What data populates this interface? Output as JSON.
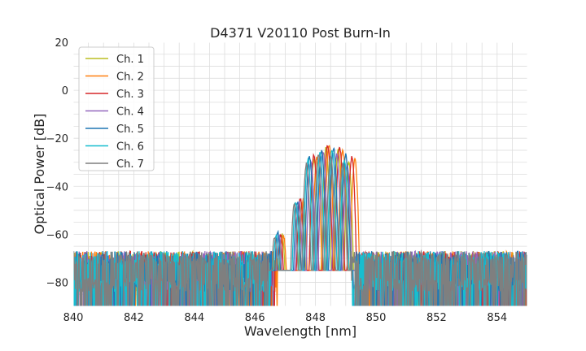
{
  "chart_data": {
    "type": "line",
    "title": "D4371 V20110 Post Burn-In",
    "xlabel": "Wavelength [nm]",
    "ylabel": "Optical Power [dB]",
    "xlim": [
      840,
      855
    ],
    "ylim": [
      -90,
      20
    ],
    "xticks": [
      840,
      842,
      844,
      846,
      848,
      850,
      852,
      854
    ],
    "yticks": [
      20,
      0,
      -20,
      -40,
      -60,
      -80
    ],
    "grid": true,
    "legend_position": "top-left",
    "noise_floor_db": -75,
    "series": [
      {
        "name": "Ch. 1",
        "color": "#bcbd22",
        "peaks": [
          [
            846.9,
            -60
          ],
          [
            847.55,
            -47
          ],
          [
            847.95,
            -29
          ],
          [
            848.35,
            -24
          ],
          [
            848.75,
            -25
          ],
          [
            849.1,
            -30
          ]
        ],
        "band": [
          846.7,
          849.35
        ]
      },
      {
        "name": "Ch. 2",
        "color": "#ff7f0e",
        "peaks": [
          [
            846.95,
            -61
          ],
          [
            847.6,
            -46
          ],
          [
            848.05,
            -28
          ],
          [
            848.45,
            -23
          ],
          [
            848.9,
            -25
          ],
          [
            849.3,
            -29
          ]
        ],
        "band": [
          846.75,
          849.55
        ]
      },
      {
        "name": "Ch. 3",
        "color": "#d62728",
        "peaks": [
          [
            846.85,
            -60
          ],
          [
            847.5,
            -45
          ],
          [
            847.95,
            -27
          ],
          [
            848.4,
            -23
          ],
          [
            848.8,
            -24
          ],
          [
            849.2,
            -28
          ]
        ],
        "band": [
          846.65,
          849.45
        ]
      },
      {
        "name": "Ch. 4",
        "color": "#9467bd",
        "peaks": [
          [
            846.8,
            -60
          ],
          [
            847.45,
            -46
          ],
          [
            847.85,
            -30
          ],
          [
            848.25,
            -26
          ],
          [
            848.7,
            -27
          ],
          [
            849.05,
            -31
          ]
        ],
        "band": [
          846.6,
          849.3
        ]
      },
      {
        "name": "Ch. 5",
        "color": "#1f77b4",
        "peaks": [
          [
            846.75,
            -59
          ],
          [
            847.4,
            -47
          ],
          [
            847.8,
            -28
          ],
          [
            848.2,
            -25
          ],
          [
            848.6,
            -24
          ],
          [
            849.0,
            -27
          ]
        ],
        "band": [
          846.55,
          849.25
        ]
      },
      {
        "name": "Ch. 6",
        "color": "#17becf",
        "peaks": [
          [
            846.7,
            -60
          ],
          [
            847.35,
            -47
          ],
          [
            847.75,
            -29
          ],
          [
            848.15,
            -26
          ],
          [
            848.55,
            -25
          ],
          [
            848.95,
            -29
          ]
        ],
        "band": [
          846.5,
          849.2
        ]
      },
      {
        "name": "Ch. 7",
        "color": "#7f7f7f",
        "peaks": [
          [
            846.65,
            -61
          ],
          [
            847.3,
            -48
          ],
          [
            847.7,
            -31
          ],
          [
            848.1,
            -27
          ],
          [
            848.5,
            -27
          ],
          [
            848.9,
            -31
          ]
        ],
        "band": [
          846.45,
          849.15
        ]
      }
    ]
  }
}
